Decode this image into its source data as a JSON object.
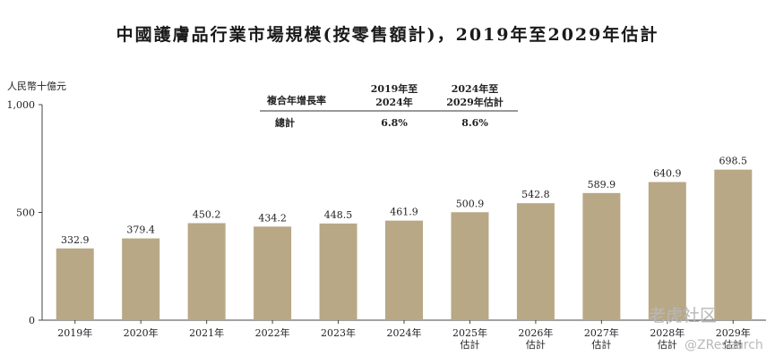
{
  "title": "中國護膚品行業市場規模(按零售額計)，2019年至2029年估計",
  "unit_label": "人民幣十億元",
  "cagr_table": {
    "row_header": "複合年增長率",
    "columns": [
      {
        "line1": "2019年至",
        "line2": "2024年"
      },
      {
        "line1": "2024年至",
        "line2": "2029年估計"
      }
    ],
    "rows": [
      {
        "label": "總計",
        "values": [
          "6.8%",
          "8.6%"
        ]
      }
    ]
  },
  "chart_data": {
    "type": "bar",
    "categories": [
      "2019年",
      "2020年",
      "2021年",
      "2022年",
      "2023年",
      "2024年",
      "2025年估計",
      "2026年估計",
      "2027年估計",
      "2028年估計",
      "2029年估計"
    ],
    "category_lines": [
      [
        "2019年"
      ],
      [
        "2020年"
      ],
      [
        "2021年"
      ],
      [
        "2022年"
      ],
      [
        "2023年"
      ],
      [
        "2024年"
      ],
      [
        "2025年",
        "估計"
      ],
      [
        "2026年",
        "估計"
      ],
      [
        "2027年",
        "估計"
      ],
      [
        "2028年",
        "估計"
      ],
      [
        "2029年",
        "估計"
      ]
    ],
    "values": [
      332.9,
      379.4,
      450.2,
      434.2,
      448.5,
      461.9,
      500.9,
      542.8,
      589.9,
      640.9,
      698.5
    ],
    "value_labels": [
      "332.9",
      "379.4",
      "450.2",
      "434.2",
      "448.5",
      "461.9",
      "500.9",
      "542.8",
      "589.9",
      "640.9",
      "698.5"
    ],
    "ylim": [
      0,
      1000
    ],
    "yticks": [
      0,
      500,
      1000
    ],
    "ytick_labels": [
      "0",
      "500",
      "1,000"
    ],
    "ylabel": "人民幣十億元",
    "xlabel": "",
    "grid": false,
    "bar_color": "#b8a886"
  },
  "watermark": {
    "line1": "老虎社区",
    "line2": "@ZResearch"
  }
}
